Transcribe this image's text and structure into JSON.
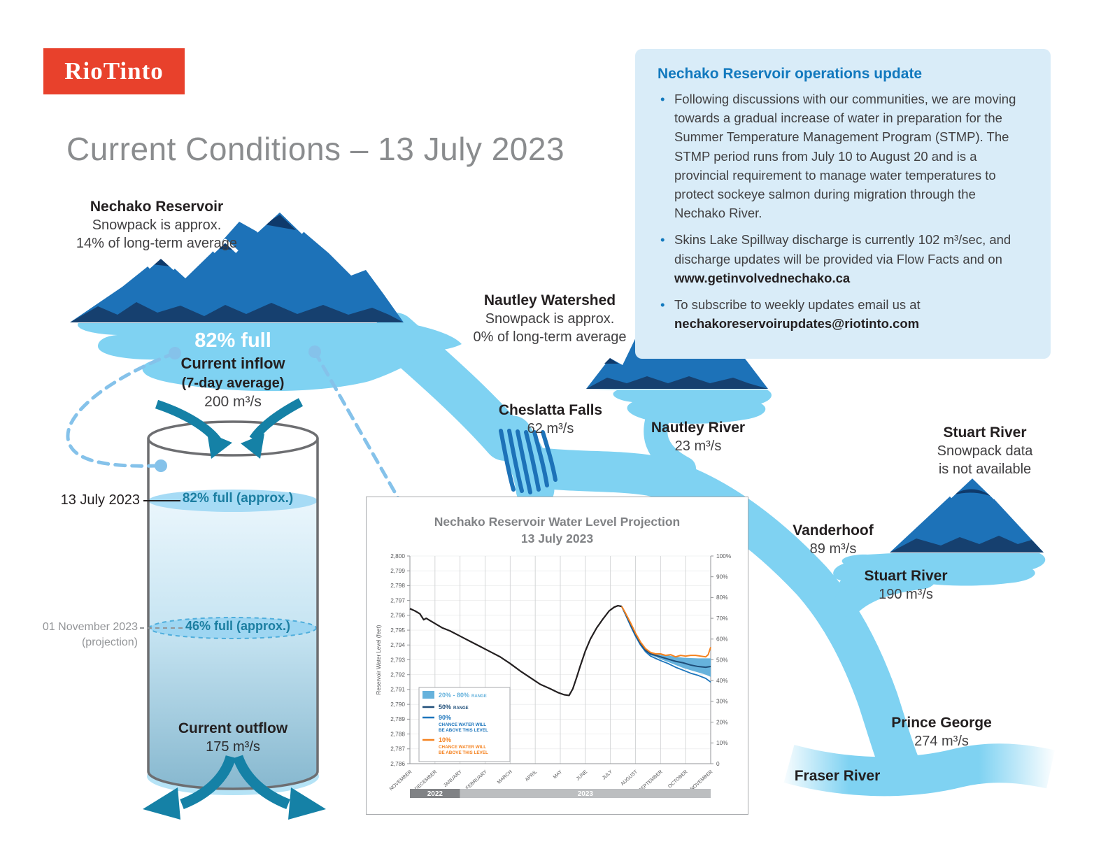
{
  "logo": {
    "text": "RioTinto",
    "bg_color": "#E8412C"
  },
  "page_title": "Current Conditions – 13 July 2023",
  "update_box": {
    "title": "Nechako Reservoir operations update",
    "bullets": [
      {
        "text": "Following discussions with our communities, we are moving towards a gradual increase of water in preparation for the Summer Temperature Management Program (STMP). The STMP period runs from July 10 to August 20 and is a provincial requirement to manage water temperatures to protect sockeye salmon during migration through the Nechako River.",
        "bold": ""
      },
      {
        "text": "Skins Lake Spillway discharge is currently 102 m³/sec, and discharge updates will be provided via Flow Facts and on ",
        "bold": "www.getinvolvednechako.ca"
      },
      {
        "text": "To subscribe to weekly updates email us at ",
        "bold": "nechakoreservoirupdates@riotinto.com"
      }
    ]
  },
  "snowpack": {
    "nechako": {
      "name": "Nechako Reservoir",
      "line1": "Snowpack is approx.",
      "line2": "14% of long-term average"
    },
    "nautley": {
      "name": "Nautley Watershed",
      "line1": "Snowpack is approx.",
      "line2": "0% of long-term average"
    },
    "stuart": {
      "name": "Stuart River",
      "line1": "Snowpack data",
      "line2": "is not available"
    }
  },
  "reservoir": {
    "full_label": "82% full",
    "inflow_title": "Current inflow",
    "inflow_subtitle": "(7-day average)",
    "inflow_value": "200 m³/s",
    "outflow_title": "Current outflow",
    "outflow_value": "175 m³/s"
  },
  "tank": {
    "now_date": "13 July 2023",
    "now_level": "82% full (approx.)",
    "proj_date": "01 November 2023",
    "proj_note": "(projection)",
    "proj_level": "46% full (approx.)"
  },
  "flows": {
    "cheslatta": {
      "name": "Cheslatta Falls",
      "value": "62 m³/s"
    },
    "nautley_river": {
      "name": "Nautley River",
      "value": "23 m³/s"
    },
    "vanderhoof": {
      "name": "Vanderhoof",
      "value": "89 m³/s"
    },
    "stuart_river": {
      "name": "Stuart River",
      "value": "190 m³/s"
    },
    "prince_george": {
      "name": "Prince George",
      "value": "274 m³/s"
    },
    "fraser": {
      "name": "Fraser River"
    }
  },
  "chart_data": {
    "type": "line",
    "title": "Nechako Reservoir Water Level Projection",
    "subtitle": "13 July 2023",
    "ylabel": "Reservoir Water Level (feet)",
    "ylim": [
      2786,
      2800
    ],
    "y2lim": [
      0,
      100
    ],
    "x_range": [
      0,
      12
    ],
    "x_months": [
      "NOVEMBER",
      "DECEMBER",
      "JANUARY",
      "FEBRUARY",
      "MARCH",
      "APRIL",
      "MAY",
      "JUNE",
      "JULY",
      "AUGUST",
      "SEPTEMBER",
      "OCTOBER",
      "NOVEMBER"
    ],
    "grid": true,
    "legend_position": "lower-left",
    "year_bars": [
      {
        "label": "2022",
        "from": 0,
        "to": 2,
        "color": "#808285"
      },
      {
        "label": "2023",
        "from": 2,
        "to": 12,
        "color": "#BCBEC0"
      }
    ],
    "legend": [
      {
        "type": "band",
        "color": "#66B2DC",
        "label": "20% - 80%",
        "sub": "RANGE"
      },
      {
        "type": "line",
        "color": "#1F4E79",
        "label": "50%",
        "sub": "RANGE"
      },
      {
        "type": "line",
        "color": "#1C75BC",
        "label": "90%",
        "sub": "CHANCE WATER WILL|BE ABOVE THIS LEVEL"
      },
      {
        "type": "line",
        "color": "#F5821F",
        "label": "10%",
        "sub": "CHANCE WATER WILL|BE ABOVE THIS LEVEL"
      }
    ],
    "band": {
      "name": "range_20_80",
      "color": "#66B2DC",
      "upper": [
        [
          8.45,
          2796.6
        ],
        [
          8.6,
          2796.12
        ],
        [
          8.8,
          2795.45
        ],
        [
          9,
          2794.75
        ],
        [
          9.2,
          2794.15
        ],
        [
          9.4,
          2793.7
        ],
        [
          9.6,
          2793.45
        ],
        [
          9.8,
          2793.4
        ],
        [
          10,
          2793.35
        ],
        [
          10.3,
          2793.3
        ],
        [
          10.6,
          2793.2
        ],
        [
          10.9,
          2793.15
        ],
        [
          11.2,
          2793.12
        ],
        [
          11.5,
          2793.1
        ],
        [
          11.8,
          2793.1
        ],
        [
          12,
          2793.1
        ]
      ],
      "lower": [
        [
          8.45,
          2796.6
        ],
        [
          8.6,
          2796.08
        ],
        [
          8.8,
          2795.35
        ],
        [
          9,
          2794.65
        ],
        [
          9.2,
          2794.05
        ],
        [
          9.4,
          2793.6
        ],
        [
          9.6,
          2793.3
        ],
        [
          9.8,
          2793.2
        ],
        [
          10,
          2793.05
        ],
        [
          10.3,
          2792.85
        ],
        [
          10.6,
          2792.65
        ],
        [
          10.9,
          2792.45
        ],
        [
          11.2,
          2792.3
        ],
        [
          11.5,
          2792.15
        ],
        [
          11.8,
          2792.0
        ],
        [
          12,
          2791.85
        ]
      ]
    },
    "series": [
      {
        "name": "observed",
        "color": "#231F20",
        "width": 2.2,
        "points": [
          [
            0,
            2796.45
          ],
          [
            0.2,
            2796.3
          ],
          [
            0.4,
            2796.1
          ],
          [
            0.55,
            2795.7
          ],
          [
            0.65,
            2795.8
          ],
          [
            0.8,
            2795.65
          ],
          [
            1,
            2795.45
          ],
          [
            1.3,
            2795.15
          ],
          [
            1.6,
            2794.95
          ],
          [
            2,
            2794.6
          ],
          [
            2.4,
            2794.25
          ],
          [
            2.8,
            2793.9
          ],
          [
            3.2,
            2793.55
          ],
          [
            3.6,
            2793.2
          ],
          [
            4,
            2792.75
          ],
          [
            4.4,
            2792.25
          ],
          [
            4.8,
            2791.8
          ],
          [
            5.2,
            2791.35
          ],
          [
            5.6,
            2791.05
          ],
          [
            5.9,
            2790.8
          ],
          [
            6.15,
            2790.65
          ],
          [
            6.35,
            2790.6
          ],
          [
            6.5,
            2791.05
          ],
          [
            6.65,
            2791.8
          ],
          [
            6.8,
            2792.6
          ],
          [
            7,
            2793.6
          ],
          [
            7.2,
            2794.4
          ],
          [
            7.45,
            2795.15
          ],
          [
            7.7,
            2795.75
          ],
          [
            7.95,
            2796.3
          ],
          [
            8.15,
            2796.55
          ],
          [
            8.3,
            2796.65
          ],
          [
            8.45,
            2796.6
          ]
        ]
      },
      {
        "name": "p90",
        "color": "#1C75BC",
        "width": 1.8,
        "points": [
          [
            8.45,
            2796.6
          ],
          [
            8.6,
            2796.05
          ],
          [
            8.8,
            2795.3
          ],
          [
            9,
            2794.6
          ],
          [
            9.2,
            2794.0
          ],
          [
            9.4,
            2793.55
          ],
          [
            9.6,
            2793.25
          ],
          [
            9.8,
            2793.1
          ],
          [
            10,
            2792.95
          ],
          [
            10.3,
            2792.75
          ],
          [
            10.6,
            2792.5
          ],
          [
            10.9,
            2792.3
          ],
          [
            11.2,
            2792.1
          ],
          [
            11.5,
            2791.95
          ],
          [
            11.8,
            2791.75
          ],
          [
            12,
            2791.5
          ]
        ]
      },
      {
        "name": "p50",
        "color": "#1F4E79",
        "width": 2,
        "points": [
          [
            8.45,
            2796.6
          ],
          [
            8.6,
            2796.1
          ],
          [
            8.8,
            2795.4
          ],
          [
            9,
            2794.7
          ],
          [
            9.2,
            2794.1
          ],
          [
            9.4,
            2793.65
          ],
          [
            9.6,
            2793.4
          ],
          [
            9.8,
            2793.3
          ],
          [
            10,
            2793.2
          ],
          [
            10.3,
            2793.05
          ],
          [
            10.6,
            2792.9
          ],
          [
            10.9,
            2792.8
          ],
          [
            11.2,
            2792.65
          ],
          [
            11.5,
            2792.55
          ],
          [
            11.8,
            2792.5
          ],
          [
            12,
            2792.55
          ]
        ]
      },
      {
        "name": "p10",
        "color": "#F5821F",
        "width": 2,
        "points": [
          [
            8.45,
            2796.6
          ],
          [
            8.6,
            2796.15
          ],
          [
            8.8,
            2795.5
          ],
          [
            9,
            2794.8
          ],
          [
            9.2,
            2794.2
          ],
          [
            9.4,
            2793.75
          ],
          [
            9.6,
            2793.5
          ],
          [
            9.8,
            2793.4
          ],
          [
            10,
            2793.4
          ],
          [
            10.2,
            2793.3
          ],
          [
            10.4,
            2793.35
          ],
          [
            10.6,
            2793.2
          ],
          [
            10.8,
            2793.3
          ],
          [
            11,
            2793.25
          ],
          [
            11.2,
            2793.3
          ],
          [
            11.4,
            2793.3
          ],
          [
            11.6,
            2793.25
          ],
          [
            11.8,
            2793.2
          ],
          [
            11.9,
            2793.35
          ],
          [
            12,
            2793.85
          ]
        ]
      }
    ]
  }
}
